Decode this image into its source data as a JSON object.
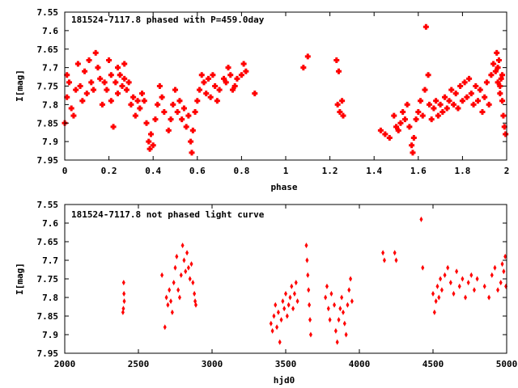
{
  "chart_data": [
    {
      "type": "scatter",
      "title": "181524-7117.8 phased with P=459.0day",
      "xlabel": "phase",
      "ylabel": "I[mag]",
      "xlim": [
        0,
        2
      ],
      "ylim": [
        7.95,
        7.55
      ],
      "y_inverted": true,
      "grid": false,
      "marker": "filled-cross",
      "color": "#ff0000",
      "xticks": [
        "0",
        "0.2",
        "0.4",
        "0.6",
        "0.8",
        "1",
        "1.2",
        "1.4",
        "1.6",
        "1.8",
        "2"
      ],
      "xtick_values": [
        0,
        0.2,
        0.4,
        0.6,
        0.8,
        1,
        1.2,
        1.4,
        1.6,
        1.8,
        2
      ],
      "yticks": [
        "7.55",
        "7.6",
        "7.65",
        "7.7",
        "7.75",
        "7.8",
        "7.85",
        "7.9",
        "7.95"
      ],
      "ytick_values": [
        7.55,
        7.6,
        7.65,
        7.7,
        7.75,
        7.8,
        7.85,
        7.9,
        7.95
      ],
      "points": [
        [
          0.0,
          7.85
        ],
        [
          0.01,
          7.72
        ],
        [
          0.01,
          7.78
        ],
        [
          0.02,
          7.74
        ],
        [
          0.03,
          7.81
        ],
        [
          0.04,
          7.83
        ],
        [
          0.05,
          7.76
        ],
        [
          0.06,
          7.69
        ],
        [
          0.07,
          7.75
        ],
        [
          0.08,
          7.79
        ],
        [
          0.09,
          7.71
        ],
        [
          0.1,
          7.77
        ],
        [
          0.11,
          7.68
        ],
        [
          0.12,
          7.74
        ],
        [
          0.13,
          7.76
        ],
        [
          0.14,
          7.66
        ],
        [
          0.15,
          7.7
        ],
        [
          0.16,
          7.73
        ],
        [
          0.17,
          7.8
        ],
        [
          0.18,
          7.74
        ],
        [
          0.19,
          7.76
        ],
        [
          0.2,
          7.68
        ],
        [
          0.21,
          7.72
        ],
        [
          0.21,
          7.79
        ],
        [
          0.22,
          7.86
        ],
        [
          0.23,
          7.74
        ],
        [
          0.24,
          7.7
        ],
        [
          0.24,
          7.77
        ],
        [
          0.25,
          7.72
        ],
        [
          0.26,
          7.75
        ],
        [
          0.27,
          7.73
        ],
        [
          0.27,
          7.69
        ],
        [
          0.28,
          7.76
        ],
        [
          0.29,
          7.74
        ],
        [
          0.3,
          7.8
        ],
        [
          0.31,
          7.78
        ],
        [
          0.32,
          7.83
        ],
        [
          0.33,
          7.79
        ],
        [
          0.34,
          7.81
        ],
        [
          0.35,
          7.77
        ],
        [
          0.36,
          7.79
        ],
        [
          0.37,
          7.85
        ],
        [
          0.38,
          7.9
        ],
        [
          0.385,
          7.92
        ],
        [
          0.39,
          7.88
        ],
        [
          0.4,
          7.91
        ],
        [
          0.41,
          7.84
        ],
        [
          0.42,
          7.8
        ],
        [
          0.43,
          7.75
        ],
        [
          0.44,
          7.78
        ],
        [
          0.45,
          7.82
        ],
        [
          0.47,
          7.87
        ],
        [
          0.48,
          7.84
        ],
        [
          0.49,
          7.8
        ],
        [
          0.5,
          7.76
        ],
        [
          0.51,
          7.82
        ],
        [
          0.52,
          7.79
        ],
        [
          0.53,
          7.84
        ],
        [
          0.54,
          7.81
        ],
        [
          0.55,
          7.86
        ],
        [
          0.56,
          7.83
        ],
        [
          0.57,
          7.9
        ],
        [
          0.575,
          7.93
        ],
        [
          0.58,
          7.87
        ],
        [
          0.59,
          7.82
        ],
        [
          0.6,
          7.79
        ],
        [
          0.61,
          7.76
        ],
        [
          0.62,
          7.72
        ],
        [
          0.63,
          7.74
        ],
        [
          0.64,
          7.77
        ],
        [
          0.65,
          7.73
        ],
        [
          0.66,
          7.78
        ],
        [
          0.67,
          7.72
        ],
        [
          0.68,
          7.75
        ],
        [
          0.69,
          7.79
        ],
        [
          0.7,
          7.76
        ],
        [
          0.72,
          7.73
        ],
        [
          0.73,
          7.74
        ],
        [
          0.74,
          7.7
        ],
        [
          0.75,
          7.72
        ],
        [
          0.76,
          7.76
        ],
        [
          0.77,
          7.75
        ],
        [
          0.78,
          7.73
        ],
        [
          0.8,
          7.72
        ],
        [
          0.81,
          7.69
        ],
        [
          0.82,
          7.71
        ],
        [
          0.86,
          7.77
        ],
        [
          1.08,
          7.7
        ],
        [
          1.1,
          7.67
        ],
        [
          1.23,
          7.68
        ],
        [
          1.24,
          7.71
        ],
        [
          1.235,
          7.8
        ],
        [
          1.245,
          7.82
        ],
        [
          1.255,
          7.79
        ],
        [
          1.26,
          7.83
        ],
        [
          1.43,
          7.87
        ],
        [
          1.45,
          7.88
        ],
        [
          1.47,
          7.89
        ],
        [
          1.49,
          7.83
        ],
        [
          1.5,
          7.86
        ],
        [
          1.51,
          7.87
        ],
        [
          1.52,
          7.85
        ],
        [
          1.53,
          7.82
        ],
        [
          1.54,
          7.84
        ],
        [
          1.55,
          7.8
        ],
        [
          1.56,
          7.86
        ],
        [
          1.57,
          7.91
        ],
        [
          1.575,
          7.93
        ],
        [
          1.58,
          7.89
        ],
        [
          1.59,
          7.84
        ],
        [
          1.6,
          7.82
        ],
        [
          1.61,
          7.79
        ],
        [
          1.62,
          7.83
        ],
        [
          1.63,
          7.76
        ],
        [
          1.635,
          7.59
        ],
        [
          1.645,
          7.72
        ],
        [
          1.65,
          7.8
        ],
        [
          1.66,
          7.84
        ],
        [
          1.67,
          7.81
        ],
        [
          1.68,
          7.79
        ],
        [
          1.69,
          7.83
        ],
        [
          1.7,
          7.8
        ],
        [
          1.71,
          7.82
        ],
        [
          1.72,
          7.78
        ],
        [
          1.73,
          7.81
        ],
        [
          1.74,
          7.79
        ],
        [
          1.75,
          7.76
        ],
        [
          1.76,
          7.8
        ],
        [
          1.77,
          7.77
        ],
        [
          1.78,
          7.81
        ],
        [
          1.79,
          7.75
        ],
        [
          1.8,
          7.79
        ],
        [
          1.81,
          7.74
        ],
        [
          1.82,
          7.78
        ],
        [
          1.83,
          7.73
        ],
        [
          1.84,
          7.77
        ],
        [
          1.85,
          7.8
        ],
        [
          1.86,
          7.75
        ],
        [
          1.87,
          7.79
        ],
        [
          1.88,
          7.76
        ],
        [
          1.89,
          7.82
        ],
        [
          1.9,
          7.78
        ],
        [
          1.91,
          7.74
        ],
        [
          1.92,
          7.8
        ],
        [
          1.93,
          7.72
        ],
        [
          1.94,
          7.69
        ],
        [
          1.95,
          7.71
        ],
        [
          1.955,
          7.66
        ],
        [
          1.96,
          7.74
        ],
        [
          1.965,
          7.68
        ],
        [
          1.97,
          7.77
        ],
        [
          1.975,
          7.73
        ],
        [
          1.98,
          7.79
        ],
        [
          1.985,
          7.83
        ],
        [
          1.99,
          7.86
        ],
        [
          1.995,
          7.88
        ],
        [
          1.96,
          7.7
        ],
        [
          1.97,
          7.75
        ],
        [
          1.98,
          7.72
        ]
      ]
    },
    {
      "type": "scatter",
      "title": "181524-7117.8 not phased light curve",
      "xlabel": "hjd0",
      "ylabel": "I[mag]",
      "xlim": [
        2000,
        5000
      ],
      "ylim": [
        7.95,
        7.55
      ],
      "y_inverted": true,
      "grid": false,
      "marker": "filled-diamond",
      "color": "#ff0000",
      "xticks": [
        "2000",
        "2500",
        "3000",
        "3500",
        "4000",
        "4500",
        "5000"
      ],
      "xtick_values": [
        2000,
        2500,
        3000,
        3500,
        4000,
        4500,
        5000
      ],
      "yticks": [
        "7.55",
        "7.6",
        "7.65",
        "7.7",
        "7.75",
        "7.8",
        "7.85",
        "7.9",
        "7.95"
      ],
      "ytick_values": [
        7.55,
        7.6,
        7.65,
        7.7,
        7.75,
        7.8,
        7.85,
        7.9,
        7.95
      ],
      "points": [
        [
          2395,
          7.84
        ],
        [
          2398,
          7.83
        ],
        [
          2400,
          7.76
        ],
        [
          2402,
          7.79
        ],
        [
          2404,
          7.81
        ],
        [
          2660,
          7.74
        ],
        [
          2680,
          7.88
        ],
        [
          2690,
          7.8
        ],
        [
          2700,
          7.82
        ],
        [
          2710,
          7.78
        ],
        [
          2720,
          7.81
        ],
        [
          2730,
          7.84
        ],
        [
          2740,
          7.76
        ],
        [
          2750,
          7.72
        ],
        [
          2760,
          7.69
        ],
        [
          2770,
          7.78
        ],
        [
          2780,
          7.8
        ],
        [
          2790,
          7.74
        ],
        [
          2800,
          7.66
        ],
        [
          2810,
          7.7
        ],
        [
          2820,
          7.73
        ],
        [
          2830,
          7.68
        ],
        [
          2840,
          7.72
        ],
        [
          2850,
          7.75
        ],
        [
          2860,
          7.71
        ],
        [
          2870,
          7.76
        ],
        [
          2880,
          7.79
        ],
        [
          2885,
          7.81
        ],
        [
          2890,
          7.82
        ],
        [
          3400,
          7.87
        ],
        [
          3410,
          7.89
        ],
        [
          3420,
          7.85
        ],
        [
          3430,
          7.82
        ],
        [
          3440,
          7.88
        ],
        [
          3450,
          7.84
        ],
        [
          3460,
          7.92
        ],
        [
          3470,
          7.86
        ],
        [
          3480,
          7.81
        ],
        [
          3490,
          7.83
        ],
        [
          3500,
          7.79
        ],
        [
          3510,
          7.85
        ],
        [
          3520,
          7.82
        ],
        [
          3530,
          7.8
        ],
        [
          3540,
          7.77
        ],
        [
          3550,
          7.83
        ],
        [
          3560,
          7.79
        ],
        [
          3570,
          7.76
        ],
        [
          3580,
          7.81
        ],
        [
          3640,
          7.66
        ],
        [
          3645,
          7.7
        ],
        [
          3650,
          7.74
        ],
        [
          3655,
          7.78
        ],
        [
          3660,
          7.82
        ],
        [
          3665,
          7.86
        ],
        [
          3670,
          7.9
        ],
        [
          3770,
          7.8
        ],
        [
          3780,
          7.77
        ],
        [
          3790,
          7.83
        ],
        [
          3800,
          7.86
        ],
        [
          3810,
          7.79
        ],
        [
          3830,
          7.82
        ],
        [
          3840,
          7.89
        ],
        [
          3850,
          7.92
        ],
        [
          3860,
          7.86
        ],
        [
          3870,
          7.83
        ],
        [
          3880,
          7.8
        ],
        [
          3890,
          7.84
        ],
        [
          3900,
          7.87
        ],
        [
          3910,
          7.9
        ],
        [
          3920,
          7.82
        ],
        [
          3930,
          7.78
        ],
        [
          3940,
          7.75
        ],
        [
          3950,
          7.81
        ],
        [
          4160,
          7.68
        ],
        [
          4170,
          7.7
        ],
        [
          4240,
          7.68
        ],
        [
          4250,
          7.7
        ],
        [
          4420,
          7.59
        ],
        [
          4430,
          7.72
        ],
        [
          4500,
          7.79
        ],
        [
          4510,
          7.84
        ],
        [
          4520,
          7.81
        ],
        [
          4530,
          7.77
        ],
        [
          4540,
          7.8
        ],
        [
          4550,
          7.75
        ],
        [
          4560,
          7.78
        ],
        [
          4580,
          7.74
        ],
        [
          4600,
          7.72
        ],
        [
          4620,
          7.76
        ],
        [
          4640,
          7.79
        ],
        [
          4660,
          7.73
        ],
        [
          4680,
          7.77
        ],
        [
          4700,
          7.75
        ],
        [
          4720,
          7.8
        ],
        [
          4740,
          7.76
        ],
        [
          4760,
          7.74
        ],
        [
          4780,
          7.78
        ],
        [
          4800,
          7.75
        ],
        [
          4850,
          7.77
        ],
        [
          4880,
          7.8
        ],
        [
          4900,
          7.74
        ],
        [
          4920,
          7.72
        ],
        [
          4940,
          7.78
        ],
        [
          4960,
          7.76
        ],
        [
          4970,
          7.71
        ],
        [
          4980,
          7.73
        ],
        [
          4990,
          7.69
        ],
        [
          4995,
          7.77
        ]
      ]
    }
  ]
}
